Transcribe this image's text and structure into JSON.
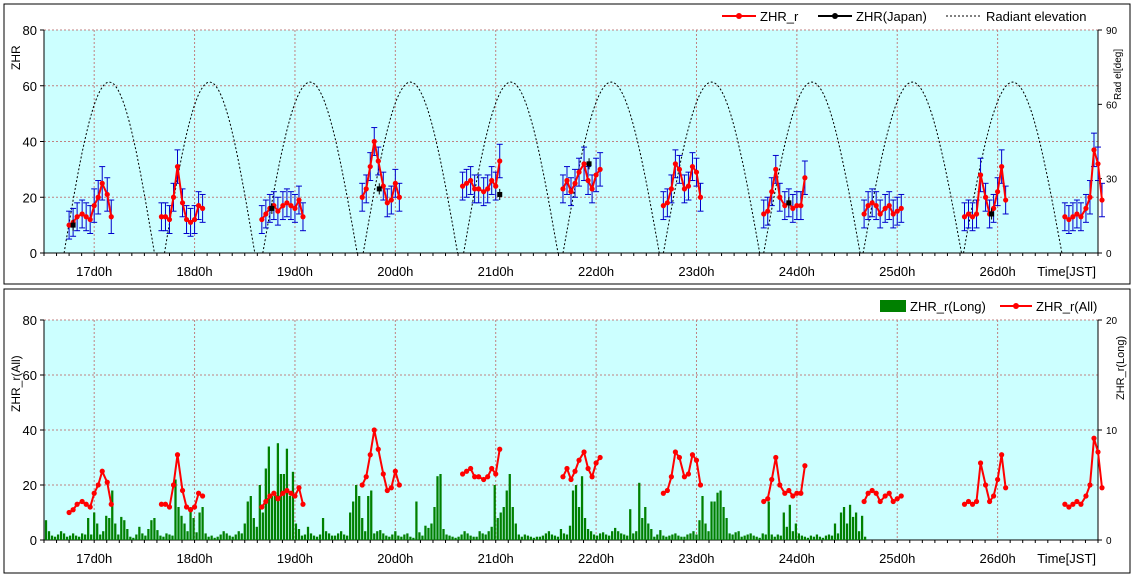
{
  "chart_data": [
    {
      "type": "line",
      "ylabel": "ZHR",
      "y2label": "Rad el[deg]",
      "ylim": [
        0,
        80
      ],
      "yticks": [
        0,
        20,
        40,
        60,
        80
      ],
      "y2lim": [
        0,
        90
      ],
      "y2ticks": [
        0,
        30,
        60,
        90
      ],
      "xlim": [
        16.5,
        27
      ],
      "xticks": [
        17,
        18,
        19,
        20,
        21,
        22,
        23,
        24,
        25,
        26
      ],
      "xtick_labels": [
        "17d0h",
        "18d0h",
        "19d0h",
        "20d0h",
        "21d0h",
        "22d0h",
        "23d0h",
        "24d0h",
        "25d0h",
        "26d0h"
      ],
      "xlabel": "Time[JST]",
      "grid": true,
      "legend": "top-right",
      "legend_entries": [
        "ZHR_r",
        "ZHR(Japan)",
        "Radiant elevation"
      ],
      "series": [
        {
          "name": "ZHR_r",
          "color": "#ff0000",
          "errorbar_color": "#0000cc",
          "points": [
            [
              16.75,
              10,
              5
            ],
            [
              16.79,
              11,
              5
            ],
            [
              16.83,
              13,
              5
            ],
            [
              16.88,
              14,
              5
            ],
            [
              16.92,
              13,
              5
            ],
            [
              16.96,
              12,
              5
            ],
            [
              17.0,
              17,
              6
            ],
            [
              17.04,
              20,
              6
            ],
            [
              17.08,
              25,
              6
            ],
            [
              17.13,
              21,
              6
            ],
            [
              17.17,
              13,
              6
            ],
            [
              17.67,
              13,
              5
            ],
            [
              17.71,
              13,
              5
            ],
            [
              17.75,
              12,
              5
            ],
            [
              17.79,
              20,
              5
            ],
            [
              17.83,
              31,
              6
            ],
            [
              17.88,
              18,
              5
            ],
            [
              17.92,
              12,
              5
            ],
            [
              17.96,
              11,
              5
            ],
            [
              18.0,
              12,
              5
            ],
            [
              18.04,
              17,
              5
            ],
            [
              18.08,
              16,
              5
            ],
            [
              18.67,
              12,
              5
            ],
            [
              18.71,
              14,
              5
            ],
            [
              18.75,
              16,
              5
            ],
            [
              18.79,
              17,
              5
            ],
            [
              18.83,
              15,
              5
            ],
            [
              18.88,
              17,
              5
            ],
            [
              18.92,
              18,
              5
            ],
            [
              18.96,
              17,
              5
            ],
            [
              19.0,
              16,
              5
            ],
            [
              19.04,
              19,
              5
            ],
            [
              19.08,
              13,
              5
            ],
            [
              19.67,
              20,
              5
            ],
            [
              19.71,
              23,
              5
            ],
            [
              19.75,
              31,
              5
            ],
            [
              19.79,
              40,
              5
            ],
            [
              19.83,
              33,
              5
            ],
            [
              19.88,
              24,
              5
            ],
            [
              19.92,
              18,
              5
            ],
            [
              19.96,
              19,
              5
            ],
            [
              20.0,
              25,
              5
            ],
            [
              20.04,
              20,
              5
            ],
            [
              20.67,
              24,
              5
            ],
            [
              20.71,
              25,
              5
            ],
            [
              20.75,
              26,
              5
            ],
            [
              20.79,
              23,
              5
            ],
            [
              20.83,
              23,
              5
            ],
            [
              20.88,
              22,
              5
            ],
            [
              20.92,
              23,
              5
            ],
            [
              20.96,
              26,
              5
            ],
            [
              21.0,
              24,
              5
            ],
            [
              21.04,
              33,
              6
            ],
            [
              21.67,
              23,
              5
            ],
            [
              21.71,
              26,
              5
            ],
            [
              21.75,
              22,
              5
            ],
            [
              21.79,
              25,
              5
            ],
            [
              21.83,
              29,
              5
            ],
            [
              21.88,
              32,
              6
            ],
            [
              21.92,
              26,
              5
            ],
            [
              21.96,
              23,
              5
            ],
            [
              22.0,
              28,
              6
            ],
            [
              22.04,
              30,
              6
            ],
            [
              22.67,
              17,
              5
            ],
            [
              22.71,
              18,
              5
            ],
            [
              22.75,
              23,
              5
            ],
            [
              22.79,
              32,
              5
            ],
            [
              22.83,
              30,
              5
            ],
            [
              22.88,
              23,
              5
            ],
            [
              22.92,
              24,
              5
            ],
            [
              22.96,
              31,
              5
            ],
            [
              23.0,
              29,
              5
            ],
            [
              23.04,
              20,
              5
            ],
            [
              23.67,
              14,
              5
            ],
            [
              23.71,
              15,
              5
            ],
            [
              23.75,
              22,
              5
            ],
            [
              23.79,
              30,
              5
            ],
            [
              23.83,
              20,
              5
            ],
            [
              23.88,
              17,
              5
            ],
            [
              23.92,
              18,
              5
            ],
            [
              23.96,
              16,
              5
            ],
            [
              24.0,
              17,
              5
            ],
            [
              24.04,
              17,
              5
            ],
            [
              24.08,
              27,
              6
            ],
            [
              24.67,
              14,
              5
            ],
            [
              24.71,
              17,
              5
            ],
            [
              24.75,
              18,
              5
            ],
            [
              24.79,
              17,
              5
            ],
            [
              24.83,
              14,
              5
            ],
            [
              24.88,
              16,
              5
            ],
            [
              24.92,
              17,
              5
            ],
            [
              24.96,
              14,
              5
            ],
            [
              25.0,
              15,
              5
            ],
            [
              25.04,
              16,
              5
            ],
            [
              25.67,
              13,
              5
            ],
            [
              25.71,
              14,
              5
            ],
            [
              25.75,
              13,
              5
            ],
            [
              25.79,
              14,
              5
            ],
            [
              25.83,
              28,
              6
            ],
            [
              25.88,
              20,
              5
            ],
            [
              25.92,
              14,
              5
            ],
            [
              25.96,
              16,
              5
            ],
            [
              26.0,
              22,
              5
            ],
            [
              26.04,
              31,
              6
            ],
            [
              26.08,
              19,
              5
            ],
            [
              26.67,
              13,
              5
            ],
            [
              26.71,
              12,
              5
            ],
            [
              26.75,
              13,
              5
            ],
            [
              26.79,
              14,
              5
            ],
            [
              26.83,
              13,
              5
            ],
            [
              26.88,
              16,
              5
            ],
            [
              26.92,
              20,
              6
            ],
            [
              26.96,
              37,
              6
            ],
            [
              27.0,
              32,
              6
            ],
            [
              27.04,
              19,
              6
            ]
          ]
        },
        {
          "name": "ZHR(Japan)",
          "color": "#000000",
          "points": [
            [
              16.79,
              10,
              2
            ],
            [
              18.77,
              16,
              2
            ],
            [
              19.84,
              23,
              2
            ],
            [
              21.04,
              21,
              2
            ],
            [
              21.93,
              32,
              2
            ],
            [
              23.92,
              18,
              2
            ],
            [
              25.94,
              14,
              2
            ]
          ]
        },
        {
          "name": "Radiant elevation",
          "color": "#000000",
          "style": "dotted",
          "axis": "y2",
          "peak_deg": 69,
          "rise_offsets": [
            -0.3,
            -0.3,
            -0.32,
            -0.32,
            -0.32,
            -0.33,
            -0.33,
            -0.33,
            -0.34,
            -0.34
          ],
          "days": [
            17,
            18,
            19,
            20,
            21,
            22,
            23,
            24,
            25,
            26
          ]
        }
      ]
    },
    {
      "type": "bar",
      "ylabel": "ZHR_r(All)",
      "y2label": "ZHR_r(Long)",
      "ylim": [
        0,
        80
      ],
      "yticks": [
        0,
        20,
        40,
        60,
        80
      ],
      "y2lim": [
        0,
        20
      ],
      "y2ticks": [
        0,
        10,
        20
      ],
      "xlim": [
        16.5,
        27
      ],
      "xticks": [
        17,
        18,
        19,
        20,
        21,
        22,
        23,
        24,
        25,
        26
      ],
      "xtick_labels": [
        "17d0h",
        "18d0h",
        "19d0h",
        "20d0h",
        "21d0h",
        "22d0h",
        "23d0h",
        "24d0h",
        "25d0h",
        "26d0h"
      ],
      "xlabel": "Time[JST]",
      "grid": true,
      "legend": "top-right",
      "legend_entries": [
        "ZHR_r(Long)",
        "ZHR_r(All)"
      ],
      "series": [
        {
          "name": "ZHR_r(Long)",
          "type": "bar",
          "axis": "y2",
          "color": "#008000",
          "x_start": 16.52,
          "x_step": 0.03,
          "values": [
            1.8,
            0.8,
            0.4,
            0.3,
            0.5,
            0.8,
            0.6,
            0.3,
            0.4,
            0.6,
            0.4,
            0.3,
            0.6,
            0.5,
            2,
            0.5,
            2.5,
            1.5,
            0.5,
            0.8,
            2.2,
            2,
            4.5,
            1.5,
            0.5,
            2.1,
            1.8,
            1,
            0.3,
            0.2,
            0.5,
            1.2,
            0.6,
            0.4,
            1,
            1.8,
            2,
            0.9,
            0.4,
            0.3,
            0.6,
            0.5,
            0.4,
            5.5,
            3,
            2.2,
            1.5,
            0.8,
            3,
            2,
            0.7,
            2.5,
            3,
            0.6,
            0.3,
            0.4,
            0.2,
            0.3,
            0.5,
            0.8,
            0.6,
            0.4,
            0.3,
            0.5,
            0.8,
            0.6,
            1.5,
            3.5,
            4,
            2,
            1.2,
            5,
            2.5,
            6.5,
            8.5,
            4,
            4,
            8.8,
            6,
            6,
            8.3,
            4,
            6.2,
            1.5,
            1,
            0.4,
            0.5,
            1.2,
            0.6,
            0.4,
            0.3,
            0.5,
            2,
            0.8,
            0.6,
            0.4,
            0.4,
            0.6,
            0.8,
            0.5,
            0.4,
            2.5,
            3.5,
            5,
            4,
            2,
            0.8,
            4,
            4.5,
            0.6,
            0.8,
            0.9,
            0.6,
            0.4,
            0.3,
            0.5,
            0.8,
            0.4,
            0.3,
            0.5,
            0.6,
            0.3,
            0.2,
            3.5,
            0.7,
            0.4,
            1.3,
            1.1,
            1.5,
            3,
            5.8,
            6,
            1,
            0.5,
            0.4,
            0.3,
            0.2,
            0.3,
            0.5,
            0.8,
            0.6,
            0.4,
            0.3,
            0.3,
            0.8,
            0.6,
            0.5,
            0.8,
            1.2,
            5,
            2,
            2.5,
            3,
            4.5,
            6,
            3,
            1.5,
            0.5,
            0.3,
            0.5,
            0.4,
            0.3,
            0.2,
            0.3,
            0.3,
            0.4,
            0.6,
            0.8,
            0.5,
            0.4,
            0.3,
            1,
            0.6,
            0.5,
            1.3,
            4.5,
            5,
            3,
            5.8,
            2,
            1,
            0.8,
            0.5,
            0.4,
            0.6,
            0.7,
            0.5,
            0.4,
            0.8,
            1.1,
            0.8,
            0.6,
            0.5,
            0.4,
            2.8,
            0.6,
            0.8,
            5.2,
            2,
            3,
            1.5,
            1,
            0.3,
            0.5,
            0.9,
            0.4,
            0.3,
            0.4,
            0.5,
            0.6,
            0.4,
            0.3,
            0.3,
            0.5,
            0.6,
            0.8,
            0.5,
            1.8,
            4,
            1.5,
            0.8,
            3.5,
            3.5,
            4.3,
            4.5,
            3,
            2,
            0.6,
            0.5,
            0.7,
            0.8,
            0.3,
            0.4,
            0.5,
            0.6,
            0.4,
            0.3,
            0.2,
            0.6,
            0.5,
            3.5,
            0.5,
            0.3,
            0.5,
            0.4,
            2.5,
            1.2,
            3.2,
            0.8,
            1.5,
            0.6,
            0.4,
            0.3,
            0.2,
            0.4,
            0.3,
            0.5,
            0.3,
            0.2,
            0.4,
            0.5,
            0.4,
            1.5,
            0.6,
            2.5,
            3,
            1.5,
            3.2,
            2.1,
            2.5,
            0.8,
            2.2,
            0.3
          ]
        },
        {
          "name": "ZHR_r(All)",
          "type": "line",
          "color": "#ff0000",
          "same_as_series": "ZHR_r"
        }
      ]
    }
  ]
}
